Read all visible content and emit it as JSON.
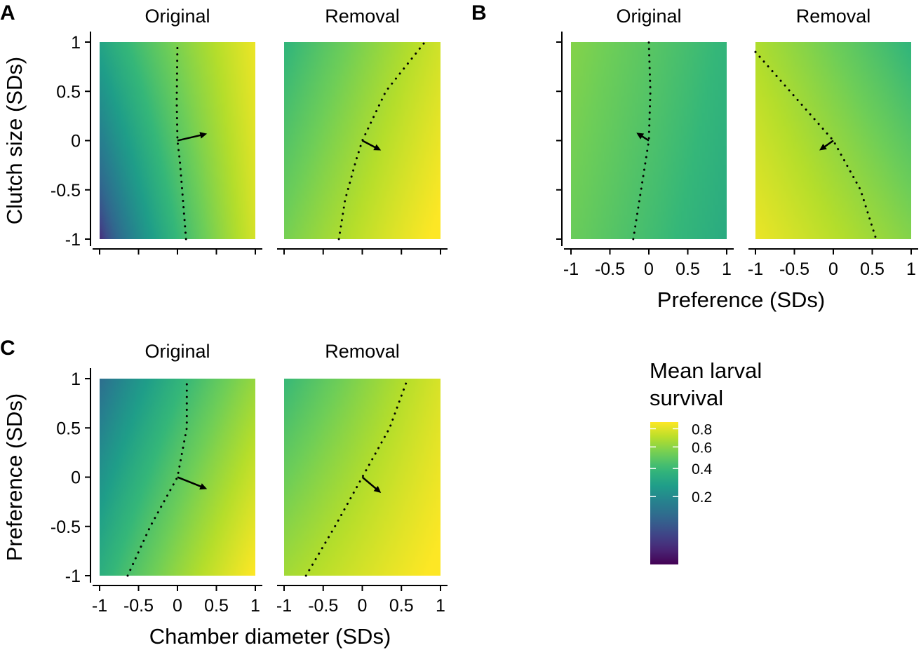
{
  "chart_data": {
    "type": "heatmap",
    "colormap": "viridis",
    "panels": [
      {
        "letter": "A",
        "xlabel": "",
        "ylabel": "Clutch size (SDs)",
        "show_x_tick_labels": false,
        "show_y_tick_labels": true,
        "subplots": [
          {
            "strip": "Original",
            "grid": {
              "type": "blend",
              "c00": 0.02,
              "c10": 0.77,
              "c01": 0.3,
              "c11": 0.83
            },
            "contour": [
              [
                0.11,
                -1
              ],
              [
                0.07,
                -0.6
              ],
              [
                0.03,
                -0.2
              ],
              [
                0.0,
                0.0
              ],
              [
                -0.01,
                0.4
              ],
              [
                0.0,
                1
              ]
            ],
            "arrow": {
              "from": [
                0,
                0
              ],
              "to": [
                0.38,
                0.07
              ]
            }
          },
          {
            "strip": "Removal",
            "grid": {
              "type": "blend",
              "c00": 0.55,
              "c10": 0.9,
              "c01": 0.38,
              "c11": 0.76
            },
            "contour": [
              [
                -0.3,
                -1
              ],
              [
                -0.22,
                -0.6
              ],
              [
                -0.08,
                -0.2
              ],
              [
                0.0,
                0.0
              ],
              [
                0.3,
                0.5
              ],
              [
                0.8,
                1
              ]
            ],
            "arrow": {
              "from": [
                0,
                0
              ],
              "to": [
                0.24,
                -0.1
              ]
            }
          }
        ]
      },
      {
        "letter": "B",
        "xlabel": "Preference (SDs)",
        "ylabel": "",
        "show_x_tick_labels": true,
        "show_y_tick_labels": false,
        "subplots": [
          {
            "strip": "Original",
            "grid": {
              "type": "blend",
              "c00": 0.52,
              "c10": 0.33,
              "c01": 0.58,
              "c11": 0.38
            },
            "contour": [
              [
                -0.2,
                -1
              ],
              [
                -0.1,
                -0.5
              ],
              [
                0.0,
                0.0
              ],
              [
                0.02,
                0.5
              ],
              [
                0.0,
                1
              ]
            ],
            "arrow": {
              "from": [
                0,
                0
              ],
              "to": [
                -0.16,
                0.08
              ]
            }
          },
          {
            "strip": "Removal",
            "grid": {
              "type": "blend",
              "c00": 0.83,
              "c10": 0.58,
              "c01": 0.68,
              "c11": 0.38
            },
            "contour": [
              [
                -1,
                0.9
              ],
              [
                -0.5,
                0.45
              ],
              [
                0.0,
                0.0
              ],
              [
                0.35,
                -0.5
              ],
              [
                0.55,
                -1
              ]
            ],
            "arrow": {
              "from": [
                0,
                0
              ],
              "to": [
                -0.18,
                -0.1
              ]
            }
          }
        ]
      },
      {
        "letter": "C",
        "xlabel": "Chamber diameter (SDs)",
        "ylabel": "Preference (SDs)",
        "show_x_tick_labels": true,
        "show_y_tick_labels": true,
        "subplots": [
          {
            "strip": "Original",
            "grid": {
              "type": "blend",
              "c00": 0.35,
              "c10": 0.88,
              "c01": 0.12,
              "c11": 0.62
            },
            "contour": [
              [
                -0.64,
                -1
              ],
              [
                -0.35,
                -0.5
              ],
              [
                0.0,
                0.0
              ],
              [
                0.12,
                0.5
              ],
              [
                0.12,
                1
              ]
            ],
            "arrow": {
              "from": [
                0,
                0
              ],
              "to": [
                0.38,
                -0.12
              ]
            }
          },
          {
            "strip": "Removal",
            "grid": {
              "type": "blend",
              "c00": 0.65,
              "c10": 0.9,
              "c01": 0.4,
              "c11": 0.78
            },
            "contour": [
              [
                -0.72,
                -1
              ],
              [
                -0.35,
                -0.5
              ],
              [
                0.0,
                0.0
              ],
              [
                0.35,
                0.5
              ],
              [
                0.58,
                1
              ]
            ],
            "arrow": {
              "from": [
                0,
                0
              ],
              "to": [
                0.24,
                -0.16
              ]
            }
          }
        ]
      }
    ],
    "xlim": [
      -1,
      1
    ],
    "ylim": [
      -1,
      1
    ],
    "x_ticks": [
      -1,
      -0.5,
      0,
      0.5,
      1
    ],
    "y_ticks": [
      -1,
      -0.5,
      0,
      0.5,
      1
    ],
    "x_tick_labels": [
      "-1",
      "-0.5",
      "0",
      "0.5",
      "1"
    ],
    "y_tick_labels": [
      "-1",
      "-0.5",
      "0",
      "0.5",
      "1"
    ],
    "legend": {
      "title_lines": [
        "Mean larval",
        "survival"
      ],
      "ticks": [
        0.2,
        0.4,
        0.6,
        0.8
      ],
      "tick_labels": [
        "0.2",
        "0.4",
        "0.6",
        "0.8"
      ],
      "range": [
        0,
        0.88
      ],
      "scale": "sqrt",
      "placement": "bottom-right"
    }
  }
}
